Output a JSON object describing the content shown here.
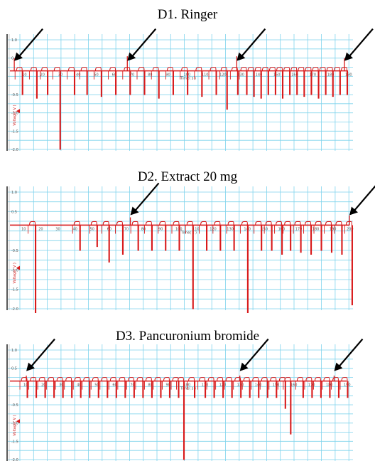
{
  "colors": {
    "trace": "#d8191a",
    "grid": "#7fd3ec",
    "axis": "#5a5a5a",
    "arrow": "#000000"
  },
  "chart_data": [
    {
      "type": "line",
      "title": "D1. Ringer",
      "xlabel": "Time( s )",
      "ylabel": "Voltage( V )",
      "ylim": [
        -2.0,
        1.0
      ],
      "xlim": [
        0,
        190
      ],
      "y_ticks": [
        "1.0",
        "0.5",
        "",
        "-0.5",
        "-1.0",
        "-1.5",
        "-2.0"
      ],
      "x_ticks": [
        "10",
        "20",
        "30",
        "40",
        "50",
        "60",
        "70",
        "80",
        "90",
        "100",
        "110",
        "120",
        "130",
        "140",
        "150",
        "160",
        "170",
        "180",
        "190"
      ],
      "baseline": 0.15,
      "contraction_times": [
        8,
        16,
        22,
        29,
        37,
        44,
        52,
        60,
        68,
        76,
        84,
        92,
        100,
        108,
        116,
        122,
        128,
        133,
        137,
        141,
        145,
        149,
        153,
        157,
        161,
        165,
        169,
        173,
        177,
        181,
        185,
        189
      ],
      "contraction_troughs": [
        -0.5,
        -0.6,
        -0.5,
        -2.0,
        -0.5,
        -0.5,
        -0.55,
        -0.5,
        -0.5,
        -0.5,
        -0.6,
        -0.5,
        -0.5,
        -0.55,
        -0.5,
        -0.9,
        -0.5,
        -0.5,
        -0.55,
        -0.6,
        -0.5,
        -0.5,
        -0.6,
        -0.5,
        -0.5,
        -0.55,
        -0.5,
        -0.6,
        -0.5,
        -0.55,
        -0.5,
        -0.5
      ],
      "spikes": [
        {
          "x": 4,
          "y": 0.5
        },
        {
          "x": 67,
          "y": 0.55
        },
        {
          "x": 128,
          "y": 0.55
        },
        {
          "x": 188,
          "y": 0.5
        }
      ],
      "arrow_x": [
        4,
        67,
        128,
        188
      ]
    },
    {
      "type": "line",
      "title": "D2. Extract 20 mg",
      "xlabel": "Time( s )",
      "ylabel": "Voltage( V )",
      "ylim": [
        -2.0,
        1.0
      ],
      "xlim": [
        0,
        200
      ],
      "y_ticks": [
        "1.0",
        "0.5",
        "",
        "-0.5",
        "-1.0",
        "-1.5",
        "-2.0"
      ],
      "x_ticks": [
        "10",
        "20",
        "30",
        "40",
        "50",
        "60",
        "70",
        "80",
        "90",
        "100",
        "110",
        "120",
        "130",
        "140",
        "150",
        "160",
        "170",
        "180",
        "190",
        "200"
      ],
      "baseline": 0.15,
      "contraction_times": [
        16,
        42,
        52,
        59,
        67,
        76,
        84,
        92,
        100,
        108,
        116,
        124,
        132,
        140,
        148,
        154,
        160,
        165,
        171,
        177,
        183,
        189,
        195,
        201
      ],
      "contraction_troughs": [
        -2.1,
        -0.5,
        -0.4,
        -0.8,
        -0.6,
        -0.5,
        -0.5,
        -0.5,
        -0.5,
        -2.0,
        -0.5,
        -0.5,
        -0.5,
        -2.1,
        -0.5,
        -0.5,
        -0.6,
        -0.5,
        -0.55,
        -0.6,
        -0.5,
        -0.55,
        -0.6,
        -1.9
      ],
      "spikes": [
        {
          "x": 72,
          "y": 0.35
        },
        {
          "x": 200,
          "y": 0.4
        }
      ],
      "arrow_x": [
        72,
        200
      ]
    },
    {
      "type": "line",
      "title": "D3. Pancuronium bromide",
      "xlabel": "Time( s )",
      "ylabel": "Voltage( V )",
      "ylim": [
        -2.0,
        1.0
      ],
      "xlim": [
        0,
        190
      ],
      "y_ticks": [
        "1.0",
        "0.5",
        "",
        "-0.5",
        "-1.0",
        "-1.5",
        "-2.0"
      ],
      "x_ticks": [
        "10",
        "20",
        "30",
        "40",
        "50",
        "60",
        "70",
        "80",
        "90",
        "100",
        "110",
        "120",
        "130",
        "140",
        "150",
        "160",
        "170",
        "180",
        "190"
      ],
      "baseline": 0.15,
      "contraction_times": [
        10,
        15,
        20,
        25,
        30,
        35,
        40,
        45,
        50,
        55,
        60,
        65,
        70,
        75,
        80,
        85,
        90,
        95,
        98,
        104,
        110,
        115,
        120,
        125,
        130,
        135,
        140,
        145,
        150,
        155,
        158,
        165,
        170,
        175,
        180,
        185,
        190
      ],
      "contraction_troughs": [
        -0.3,
        -0.3,
        -0.3,
        -0.3,
        -0.3,
        -0.3,
        -0.3,
        -0.3,
        -0.3,
        -0.3,
        -0.3,
        -0.3,
        -0.3,
        -0.3,
        -0.3,
        -0.3,
        -0.3,
        -0.3,
        -2.0,
        -0.3,
        -0.3,
        -0.3,
        -0.3,
        -0.3,
        -0.3,
        -0.3,
        -0.3,
        -0.3,
        -0.3,
        -0.6,
        -1.3,
        -0.3,
        -0.3,
        -0.3,
        -0.3,
        -0.3,
        -0.3
      ],
      "spikes": [
        {
          "x": 10,
          "y": 0.3
        },
        {
          "x": 130,
          "y": 0.3
        },
        {
          "x": 183,
          "y": 0.3
        }
      ],
      "arrow_x": [
        10,
        130,
        183
      ]
    }
  ]
}
